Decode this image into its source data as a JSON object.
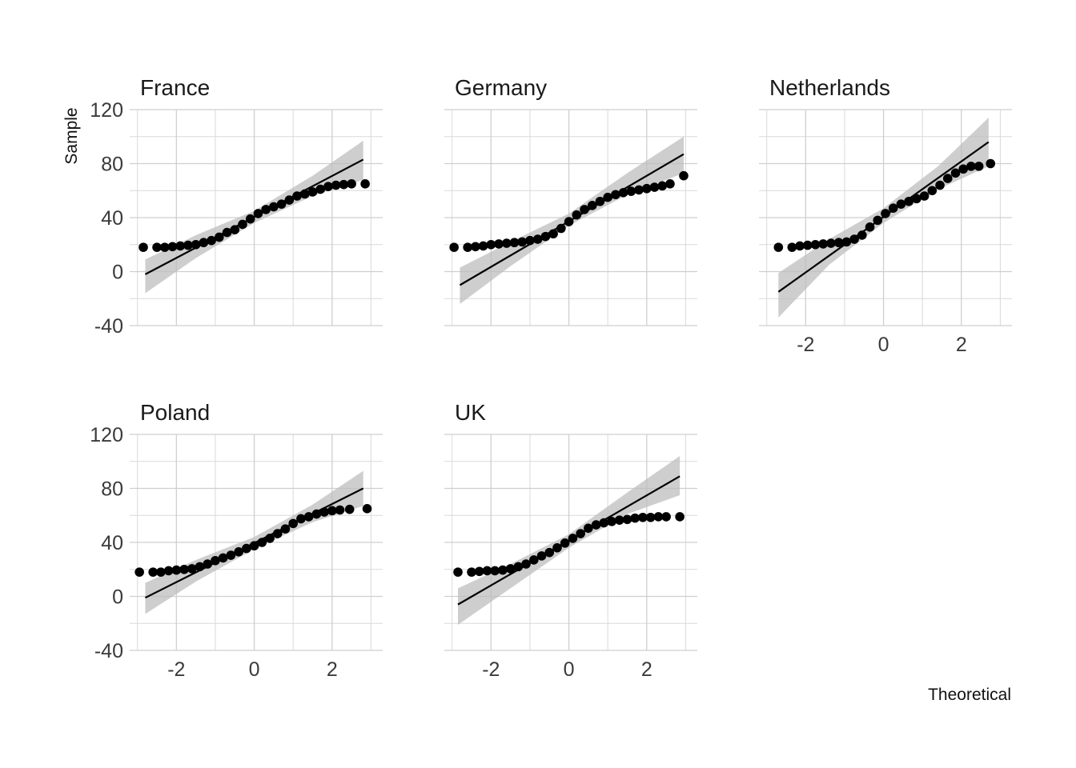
{
  "chart_data": {
    "type": "scatter",
    "subtype": "qq-plot-facets",
    "xlabel": "Theoretical",
    "ylabel": "Sample",
    "xlim": [
      -3.2,
      3.3
    ],
    "ylim": [
      -40,
      120
    ],
    "x_ticks": [
      "-2",
      "0",
      "2"
    ],
    "y_ticks": [
      "-40",
      "0",
      "40",
      "80",
      "120"
    ],
    "x_tick_values": [
      -2,
      0,
      2
    ],
    "y_tick_values": [
      -40,
      0,
      40,
      80,
      120
    ],
    "grid": true,
    "colors": {
      "points": "#000000",
      "line": "#000000",
      "band": "#bdbdbd",
      "grid": "#cfcfcf"
    },
    "panels": [
      {
        "name": "France",
        "line": {
          "x": [
            -2.8,
            2.8
          ],
          "y": [
            -2,
            83
          ]
        },
        "band": [
          {
            "x": -2.8,
            "lo": -16,
            "hi": 9
          },
          {
            "x": -1.5,
            "lo": 10,
            "hi": 27
          },
          {
            "x": 0,
            "lo": 36,
            "hi": 45
          },
          {
            "x": 1.5,
            "lo": 56,
            "hi": 71
          },
          {
            "x": 2.8,
            "lo": 68,
            "hi": 97
          }
        ],
        "points": [
          [
            -2.85,
            18
          ],
          [
            -2.5,
            18
          ],
          [
            -2.3,
            18
          ],
          [
            -2.1,
            18.5
          ],
          [
            -1.9,
            19
          ],
          [
            -1.7,
            19.5
          ],
          [
            -1.5,
            20
          ],
          [
            -1.3,
            21.5
          ],
          [
            -1.1,
            23
          ],
          [
            -0.9,
            25.5
          ],
          [
            -0.7,
            29
          ],
          [
            -0.5,
            31
          ],
          [
            -0.3,
            35
          ],
          [
            -0.1,
            39
          ],
          [
            0.1,
            43
          ],
          [
            0.3,
            46
          ],
          [
            0.5,
            48
          ],
          [
            0.7,
            50
          ],
          [
            0.9,
            53
          ],
          [
            1.1,
            56
          ],
          [
            1.3,
            57.5
          ],
          [
            1.5,
            59
          ],
          [
            1.7,
            61
          ],
          [
            1.9,
            63
          ],
          [
            2.1,
            64
          ],
          [
            2.3,
            64.5
          ],
          [
            2.5,
            65
          ],
          [
            2.85,
            65
          ]
        ]
      },
      {
        "name": "Germany",
        "line": {
          "x": [
            -2.8,
            2.95
          ],
          "y": [
            -10,
            87
          ]
        },
        "band": [
          {
            "x": -2.8,
            "lo": -24,
            "hi": 3
          },
          {
            "x": -1.5,
            "lo": 4,
            "hi": 22
          },
          {
            "x": 0,
            "lo": 34,
            "hi": 43
          },
          {
            "x": 1.5,
            "lo": 57,
            "hi": 73
          },
          {
            "x": 2.95,
            "lo": 73,
            "hi": 100
          }
        ],
        "points": [
          [
            -2.95,
            18
          ],
          [
            -2.6,
            18
          ],
          [
            -2.4,
            18.5
          ],
          [
            -2.2,
            19
          ],
          [
            -2.0,
            20
          ],
          [
            -1.8,
            20.5
          ],
          [
            -1.6,
            21
          ],
          [
            -1.4,
            21.5
          ],
          [
            -1.2,
            22
          ],
          [
            -1.0,
            23
          ],
          [
            -0.8,
            24
          ],
          [
            -0.6,
            26
          ],
          [
            -0.4,
            28
          ],
          [
            -0.2,
            32
          ],
          [
            0.0,
            37
          ],
          [
            0.2,
            42
          ],
          [
            0.4,
            46
          ],
          [
            0.6,
            49
          ],
          [
            0.8,
            52
          ],
          [
            1.0,
            55
          ],
          [
            1.2,
            57
          ],
          [
            1.4,
            58.5
          ],
          [
            1.6,
            59.5
          ],
          [
            1.8,
            60.5
          ],
          [
            2.0,
            61.5
          ],
          [
            2.2,
            62.5
          ],
          [
            2.4,
            63.5
          ],
          [
            2.6,
            65
          ],
          [
            2.95,
            71
          ]
        ]
      },
      {
        "name": "Netherlands",
        "line": {
          "x": [
            -2.7,
            2.7
          ],
          "y": [
            -15,
            96
          ]
        },
        "band": [
          {
            "x": -2.7,
            "lo": -34,
            "hi": -1
          },
          {
            "x": -1.4,
            "lo": 5,
            "hi": 24
          },
          {
            "x": 0,
            "lo": 36,
            "hi": 47
          },
          {
            "x": 1.4,
            "lo": 61,
            "hi": 78
          },
          {
            "x": 2.7,
            "lo": 78,
            "hi": 114
          }
        ],
        "points": [
          [
            -2.7,
            18
          ],
          [
            -2.35,
            18
          ],
          [
            -2.15,
            19
          ],
          [
            -1.95,
            19.5
          ],
          [
            -1.75,
            20
          ],
          [
            -1.55,
            20.5
          ],
          [
            -1.35,
            21
          ],
          [
            -1.15,
            21.5
          ],
          [
            -0.95,
            22
          ],
          [
            -0.75,
            24
          ],
          [
            -0.55,
            27
          ],
          [
            -0.35,
            33
          ],
          [
            -0.15,
            38
          ],
          [
            0.05,
            43
          ],
          [
            0.25,
            47
          ],
          [
            0.45,
            50
          ],
          [
            0.65,
            52
          ],
          [
            0.85,
            54
          ],
          [
            1.05,
            56
          ],
          [
            1.25,
            60
          ],
          [
            1.45,
            64
          ],
          [
            1.65,
            69
          ],
          [
            1.85,
            73
          ],
          [
            2.05,
            76
          ],
          [
            2.25,
            78
          ],
          [
            2.45,
            78
          ],
          [
            2.75,
            80
          ]
        ]
      },
      {
        "name": "Poland",
        "line": {
          "x": [
            -2.8,
            2.8
          ],
          "y": [
            -1,
            80
          ]
        },
        "band": [
          {
            "x": -2.8,
            "lo": -13,
            "hi": 10
          },
          {
            "x": -1.5,
            "lo": 11,
            "hi": 27
          },
          {
            "x": 0,
            "lo": 35,
            "hi": 44
          },
          {
            "x": 1.5,
            "lo": 55,
            "hi": 68
          },
          {
            "x": 2.8,
            "lo": 67,
            "hi": 93
          }
        ],
        "points": [
          [
            -2.95,
            18
          ],
          [
            -2.6,
            18
          ],
          [
            -2.4,
            18
          ],
          [
            -2.2,
            19
          ],
          [
            -2.0,
            19.5
          ],
          [
            -1.8,
            20
          ],
          [
            -1.6,
            20.5
          ],
          [
            -1.4,
            22
          ],
          [
            -1.2,
            24
          ],
          [
            -1.0,
            26.5
          ],
          [
            -0.8,
            28.5
          ],
          [
            -0.6,
            30.5
          ],
          [
            -0.4,
            33
          ],
          [
            -0.2,
            35.5
          ],
          [
            0.0,
            37.5
          ],
          [
            0.2,
            40
          ],
          [
            0.4,
            43
          ],
          [
            0.6,
            46.5
          ],
          [
            0.8,
            50
          ],
          [
            1.0,
            54
          ],
          [
            1.2,
            57.5
          ],
          [
            1.4,
            59
          ],
          [
            1.6,
            61
          ],
          [
            1.8,
            62.5
          ],
          [
            2.0,
            63.5
          ],
          [
            2.2,
            64
          ],
          [
            2.45,
            64.5
          ],
          [
            2.9,
            65
          ]
        ]
      },
      {
        "name": "UK",
        "line": {
          "x": [
            -2.85,
            2.85
          ],
          "y": [
            -6,
            89
          ]
        },
        "band": [
          {
            "x": -2.85,
            "lo": -21,
            "hi": 6
          },
          {
            "x": -1.5,
            "lo": 6,
            "hi": 24
          },
          {
            "x": 0,
            "lo": 36,
            "hi": 46
          },
          {
            "x": 1.5,
            "lo": 61,
            "hi": 77
          },
          {
            "x": 2.85,
            "lo": 75,
            "hi": 104
          }
        ],
        "points": [
          [
            -2.85,
            18
          ],
          [
            -2.5,
            18
          ],
          [
            -2.3,
            18.5
          ],
          [
            -2.1,
            19
          ],
          [
            -1.9,
            19
          ],
          [
            -1.7,
            19.5
          ],
          [
            -1.5,
            20.5
          ],
          [
            -1.3,
            22
          ],
          [
            -1.1,
            24
          ],
          [
            -0.9,
            27
          ],
          [
            -0.7,
            30
          ],
          [
            -0.5,
            32.5
          ],
          [
            -0.3,
            36
          ],
          [
            -0.1,
            39.5
          ],
          [
            0.1,
            43
          ],
          [
            0.3,
            46.5
          ],
          [
            0.5,
            50.5
          ],
          [
            0.7,
            53
          ],
          [
            0.9,
            54.5
          ],
          [
            1.1,
            55.5
          ],
          [
            1.3,
            56.5
          ],
          [
            1.5,
            57
          ],
          [
            1.7,
            58
          ],
          [
            1.9,
            58.5
          ],
          [
            2.1,
            58.5
          ],
          [
            2.3,
            59
          ],
          [
            2.5,
            59
          ],
          [
            2.85,
            59
          ]
        ]
      }
    ]
  }
}
